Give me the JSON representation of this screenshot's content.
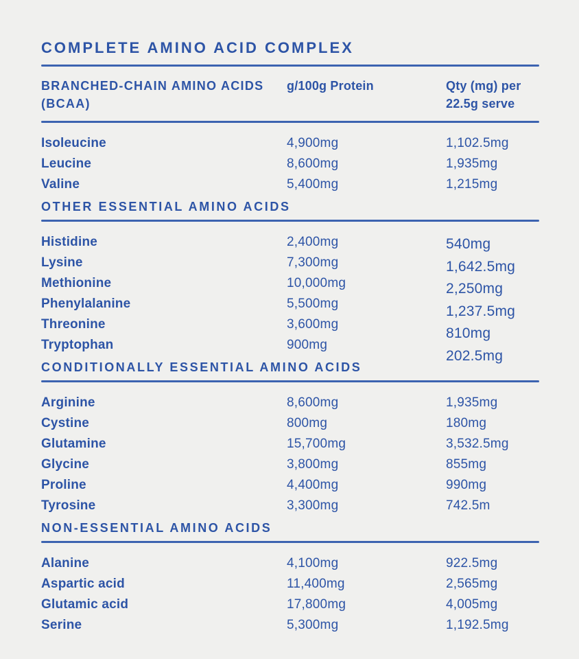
{
  "title": "COMPLETE AMINO ACID COMPLEX",
  "colors": {
    "text_blue": "#2d54a6",
    "rule_blue": "#3c63b0",
    "background": "#f0f0ee"
  },
  "table": {
    "header": {
      "col1": "BRANCHED-CHAIN AMINO ACIDS (BCAA)",
      "col2": "g/100g Protein",
      "col3": "Qty (mg) per 22.5g serve"
    },
    "sections": [
      {
        "heading": "",
        "rows": [
          {
            "name": "Isoleucine",
            "g100": "4,900mg",
            "qty": "1,102.5mg"
          },
          {
            "name": "Leucine",
            "g100": "8,600mg",
            "qty": "1,935mg"
          },
          {
            "name": "Valine",
            "g100": "5,400mg",
            "qty": "1,215mg"
          }
        ]
      },
      {
        "heading": "OTHER ESSENTIAL AMINO ACIDS",
        "rows": [
          {
            "name": "Histidine",
            "g100": "2,400mg",
            "qty": "540mg"
          },
          {
            "name": "Lysine",
            "g100": "7,300mg",
            "qty": "1,642.5mg"
          },
          {
            "name": "Methionine",
            "g100": "10,000mg",
            "qty": "2,250mg"
          },
          {
            "name": "Phenylalanine",
            "g100": "5,500mg",
            "qty": "1,237.5mg"
          },
          {
            "name": "Threonine",
            "g100": "3,600mg",
            "qty": "810mg"
          },
          {
            "name": "Tryptophan",
            "g100": "900mg",
            "qty": "202.5mg"
          }
        ]
      },
      {
        "heading": "CONDITIONALLY ESSENTIAL AMINO ACIDS",
        "rows": [
          {
            "name": "Arginine",
            "g100": "8,600mg",
            "qty": "1,935mg"
          },
          {
            "name": "Cystine",
            "g100": "800mg",
            "qty": "180mg"
          },
          {
            "name": "Glutamine",
            "g100": "15,700mg",
            "qty": "3,532.5mg"
          },
          {
            "name": "Glycine",
            "g100": "3,800mg",
            "qty": "855mg"
          },
          {
            "name": "Proline",
            "g100": "4,400mg",
            "qty": "990mg"
          },
          {
            "name": "Tyrosine",
            "g100": "3,300mg",
            "qty": "742.5m"
          }
        ]
      },
      {
        "heading": "NON-ESSENTIAL AMINO ACIDS",
        "rows": [
          {
            "name": "Alanine",
            "g100": "4,100mg",
            "qty": "922.5mg"
          },
          {
            "name": "Aspartic acid",
            "g100": "11,400mg",
            "qty": "2,565mg"
          },
          {
            "name": "Glutamic acid",
            "g100": "17,800mg",
            "qty": "4,005mg"
          },
          {
            "name": "Serine",
            "g100": "5,300mg",
            "qty": "1,192.5mg"
          }
        ]
      }
    ]
  }
}
